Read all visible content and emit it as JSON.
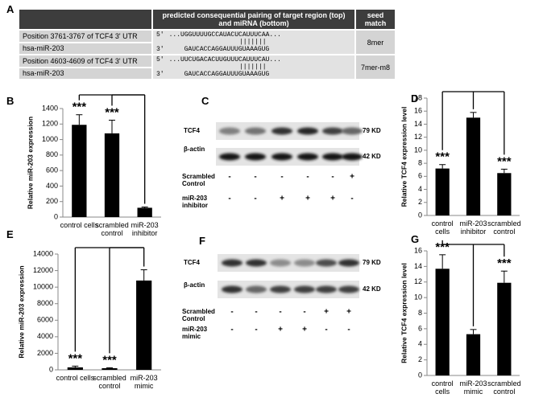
{
  "table": {
    "label": "A",
    "header": {
      "pairing": "predicted consequential pairing of target region (top) and miRNA (bottom)",
      "seed": "seed match"
    },
    "five_prime": "5'",
    "three_prime": "3'",
    "rows": [
      {
        "target": "Position 3761-3767 of TCF4 3' UTR",
        "mirna": "hsa-miR-203",
        "top": "...UGGUUUUGCCAUACUCAUUUCAA...",
        "bars": "|||||||",
        "bottom": "GAUCACCAGGAUUUGUAAAGUG",
        "seed": "8mer"
      },
      {
        "target": "Position 4603-4609 of TCF4 3' UTR",
        "mirna": "hsa-miR-203",
        "top": "...UUCUGACACUUGUUUCAUUUCAU...",
        "bars": "|||||||",
        "bottom": "GAUCACCAGGAUUUGUAAAGUG",
        "seed": "7mer-m8"
      }
    ]
  },
  "chart_data": [
    {
      "type": "bar",
      "label": "B",
      "ylabel": "Relative miR-203 expression",
      "categories": [
        "control cells",
        "scrambled control",
        "miR-203 inhibitor"
      ],
      "values": [
        1190,
        1080,
        120
      ],
      "errors": [
        130,
        170,
        10
      ],
      "annotations": [
        "***",
        "***",
        null
      ],
      "color": "#000000",
      "ylim": [
        0,
        1400
      ],
      "yticks": [
        0,
        200,
        400,
        600,
        800,
        1000,
        1200,
        1400
      ]
    },
    {
      "type": "bar",
      "label": "D",
      "ylabel": "Relative TCF4 expression level",
      "categories": [
        "control cells",
        "miR-203 inhibitor",
        "scrambled control"
      ],
      "values": [
        7.2,
        15.0,
        6.5
      ],
      "errors": [
        0.6,
        0.8,
        0.6
      ],
      "annotations": [
        "***",
        null,
        "***"
      ],
      "color": "#000000",
      "ylim": [
        0,
        18
      ],
      "yticks": [
        0,
        2,
        4,
        6,
        8,
        10,
        12,
        14,
        16,
        18
      ]
    },
    {
      "type": "bar",
      "label": "E",
      "ylabel": "Relative miR-203 expression",
      "categories": [
        "control cells",
        "scrambled control",
        "miR-203 mimic"
      ],
      "values": [
        300,
        200,
        10800
      ],
      "errors": [
        150,
        50,
        1300
      ],
      "annotations": [
        "***",
        "***",
        null
      ],
      "color": "#000000",
      "ylim": [
        0,
        14000
      ],
      "yticks": [
        0,
        2000,
        4000,
        6000,
        8000,
        10000,
        12000,
        14000
      ]
    },
    {
      "type": "bar",
      "label": "G",
      "ylabel": "Relative TCF4 expression level",
      "categories": [
        "control cells",
        "miR-203 mimic",
        "scrambled control"
      ],
      "values": [
        13.7,
        5.3,
        11.9
      ],
      "errors": [
        1.8,
        0.6,
        1.5
      ],
      "annotations": [
        "***",
        null,
        "***"
      ],
      "color": "#000000",
      "ylim": [
        0,
        16
      ],
      "yticks": [
        0,
        2,
        4,
        6,
        8,
        10,
        12,
        14,
        16
      ]
    }
  ],
  "blots": [
    {
      "label": "C",
      "rows": [
        {
          "name": "TCF4",
          "size": "79 KD"
        },
        {
          "name": "β-actin",
          "size": "42 KD"
        }
      ],
      "conditions": [
        {
          "name": "Scrambled Control",
          "signs": [
            "-",
            "-",
            "-",
            "-",
            "-",
            "+"
          ]
        },
        {
          "name": "miR-203 inhibitor",
          "signs": [
            "-",
            "-",
            "+",
            "+",
            "+",
            "-"
          ]
        }
      ]
    },
    {
      "label": "F",
      "rows": [
        {
          "name": "TCF4",
          "size": "79 KD"
        },
        {
          "name": "β-actin",
          "size": "42 KD"
        }
      ],
      "conditions": [
        {
          "name": "Scrambled Control",
          "signs": [
            "-",
            "-",
            "-",
            "-",
            "+",
            "+"
          ]
        },
        {
          "name": "miR-203 mimic",
          "signs": [
            "-",
            "-",
            "+",
            "+",
            "-",
            "-"
          ]
        }
      ]
    }
  ]
}
